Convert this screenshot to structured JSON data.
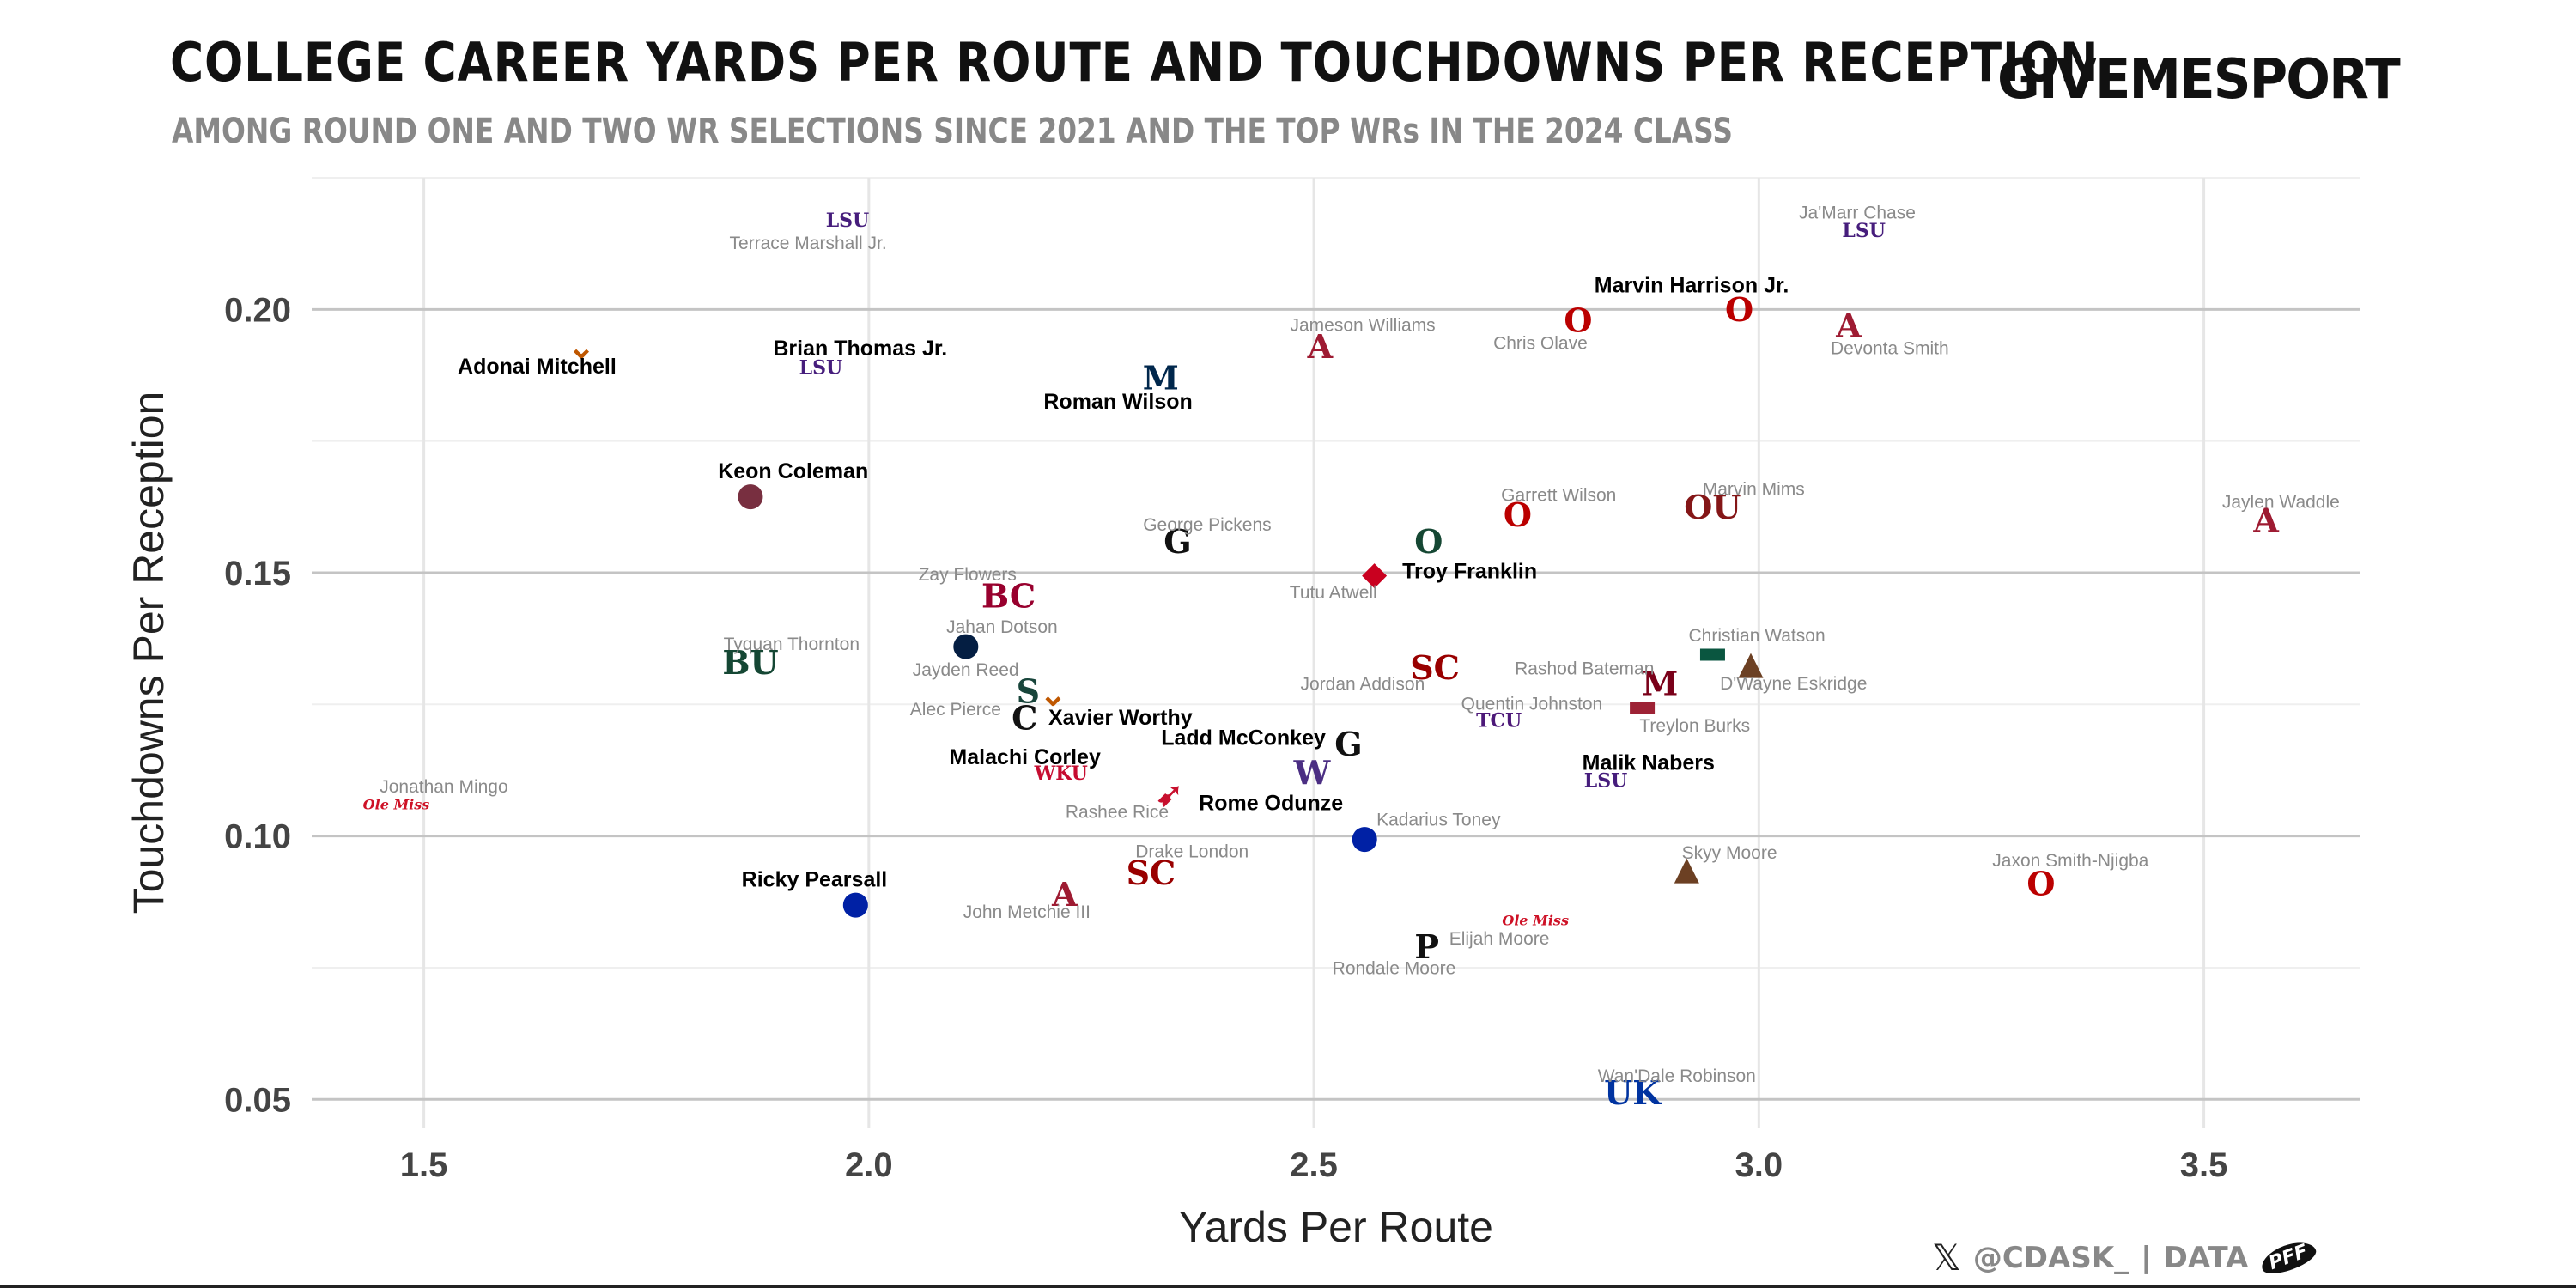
{
  "header": {
    "title": "COLLEGE CAREER YARDS PER ROUTE AND TOUCHDOWNS PER RECEPTION",
    "subtitle": "AMONG ROUND ONE AND TWO WR SELECTIONS SINCE 2021 AND THE TOP WRs IN THE 2024 CLASS",
    "brand": "GIVEMESPORT"
  },
  "footer": {
    "x_icon": "x-logo-icon",
    "handle": "@CDASK_",
    "separator": "|",
    "data_label": "DATA",
    "source_logo": "PFF"
  },
  "chart_data": {
    "type": "scatter",
    "title": "COLLEGE CAREER YARDS PER ROUTE AND TOUCHDOWNS PER RECEPTION",
    "xlabel": "Yards Per Route",
    "ylabel": "Touchdowns Per Reception",
    "xlim": [
      1.374,
      3.676
    ],
    "ylim": [
      0.0445,
      0.225
    ],
    "xticks": [
      1.5,
      2.0,
      2.5,
      3.0,
      3.5
    ],
    "xtick_labels": [
      "1.5",
      "2.0",
      "2.5",
      "3.0",
      "3.5"
    ],
    "yticks": [
      0.05,
      0.1,
      0.15,
      0.2
    ],
    "ytick_labels": [
      "0.05",
      "0.10",
      "0.15",
      "0.20"
    ],
    "grid": true,
    "marker": "school logo",
    "colors": {
      "class_2024_label": "#000000",
      "prior_label": "#8a8a8a"
    },
    "points": [
      {
        "name": "Terrace Marshall Jr.",
        "x": 1.976,
        "y": 0.217,
        "class_2024": false,
        "logo": "LSU",
        "color": "#461D7C"
      },
      {
        "name": "Ja'Marr Chase",
        "x": 3.118,
        "y": 0.215,
        "class_2024": false,
        "logo": "LSU",
        "color": "#461D7C"
      },
      {
        "name": "Adonai Mitchell",
        "x": 1.677,
        "y": 0.193,
        "class_2024": true,
        "logo": "⌄",
        "color": "#BF5700"
      },
      {
        "name": "Brian Thomas Jr.",
        "x": 1.946,
        "y": 0.189,
        "class_2024": true,
        "logo": "LSU",
        "color": "#461D7C"
      },
      {
        "name": "Roman Wilson",
        "x": 2.328,
        "y": 0.187,
        "class_2024": true,
        "logo": "M",
        "color": "#00274C"
      },
      {
        "name": "Jameson Williams",
        "x": 2.507,
        "y": 0.193,
        "class_2024": false,
        "logo": "A",
        "color": "#9E1B32"
      },
      {
        "name": "Marvin Harrison Jr.",
        "x": 2.978,
        "y": 0.2,
        "class_2024": true,
        "logo": "O",
        "color": "#BB0000"
      },
      {
        "name": "Chris Olave",
        "x": 2.797,
        "y": 0.198,
        "class_2024": false,
        "logo": "O",
        "color": "#BB0000"
      },
      {
        "name": "Devonta Smith",
        "x": 3.101,
        "y": 0.197,
        "class_2024": false,
        "logo": "A",
        "color": "#9E1B32"
      },
      {
        "name": "Keon Coleman",
        "x": 1.867,
        "y": 0.165,
        "class_2024": true,
        "logo": "●",
        "color": "#782F40"
      },
      {
        "name": "George Pickens",
        "x": 2.347,
        "y": 0.156,
        "class_2024": false,
        "logo": "G",
        "color": "#111111"
      },
      {
        "name": "Troy Franklin",
        "x": 2.629,
        "y": 0.156,
        "class_2024": true,
        "logo": "O",
        "color": "#154733"
      },
      {
        "name": "Tutu Atwell",
        "x": 2.568,
        "y": 0.15,
        "class_2024": false,
        "logo": "◆",
        "color": "#C9001F"
      },
      {
        "name": "Garrett Wilson",
        "x": 2.729,
        "y": 0.161,
        "class_2024": false,
        "logo": "O",
        "color": "#BB0000"
      },
      {
        "name": "Marvin Mims",
        "x": 2.948,
        "y": 0.1625,
        "class_2024": false,
        "logo": "OU",
        "color": "#841617"
      },
      {
        "name": "Jaylen Waddle",
        "x": 3.57,
        "y": 0.16,
        "class_2024": false,
        "logo": "A",
        "color": "#9E1B32"
      },
      {
        "name": "Zay Flowers",
        "x": 2.157,
        "y": 0.1456,
        "class_2024": false,
        "logo": "BC",
        "color": "#98002E"
      },
      {
        "name": "Jahan Dotson",
        "x": 2.109,
        "y": 0.1366,
        "class_2024": false,
        "logo": "●",
        "color": "#041E42"
      },
      {
        "name": "Tyquan Thornton",
        "x": 1.867,
        "y": 0.133,
        "class_2024": false,
        "logo": "BU",
        "color": "#154734"
      },
      {
        "name": "Jayden Reed",
        "x": 2.179,
        "y": 0.1275,
        "class_2024": false,
        "logo": "S",
        "color": "#18453B"
      },
      {
        "name": "Xavier Worthy",
        "x": 2.207,
        "y": 0.127,
        "class_2024": true,
        "logo": "⌄",
        "color": "#BF5700"
      },
      {
        "name": "Alec Pierce",
        "x": 2.175,
        "y": 0.1225,
        "class_2024": false,
        "logo": "C",
        "color": "#111111"
      },
      {
        "name": "Jordan Addison",
        "x": 2.636,
        "y": 0.132,
        "class_2024": false,
        "logo": "SC",
        "color": "#990000"
      },
      {
        "name": "Rashod Bateman",
        "x": 2.889,
        "y": 0.129,
        "class_2024": false,
        "logo": "M",
        "color": "#7A0019"
      },
      {
        "name": "Christian Watson",
        "x": 2.948,
        "y": 0.135,
        "class_2024": false,
        "logo": "▬",
        "color": "#0A5640"
      },
      {
        "name": "D'Wayne Eskridge",
        "x": 2.991,
        "y": 0.133,
        "class_2024": false,
        "logo": "▲",
        "color": "#6C4023"
      },
      {
        "name": "Quentin Johnston",
        "x": 2.708,
        "y": 0.122,
        "class_2024": false,
        "logo": "TCU",
        "color": "#4D1979"
      },
      {
        "name": "Treylon Burks",
        "x": 2.869,
        "y": 0.125,
        "class_2024": false,
        "logo": "▬",
        "color": "#9D2235"
      },
      {
        "name": "Malachi Corley",
        "x": 2.216,
        "y": 0.112,
        "class_2024": true,
        "logo": "WKU",
        "color": "#C60C30"
      },
      {
        "name": "Ladd McConkey",
        "x": 2.539,
        "y": 0.1175,
        "class_2024": true,
        "logo": "G",
        "color": "#111111"
      },
      {
        "name": "Rome Odunze",
        "x": 2.498,
        "y": 0.112,
        "class_2024": true,
        "logo": "W",
        "color": "#4B2E83"
      },
      {
        "name": "Rashee Rice",
        "x": 2.338,
        "y": 0.108,
        "class_2024": false,
        "logo": "➹",
        "color": "#C8102E"
      },
      {
        "name": "Malik Nabers",
        "x": 2.828,
        "y": 0.1106,
        "class_2024": true,
        "logo": "LSU",
        "color": "#461D7C"
      },
      {
        "name": "Jonathan Mingo",
        "x": 1.469,
        "y": 0.106,
        "class_2024": false,
        "logo": "Ole Miss",
        "color": "#CE1126"
      },
      {
        "name": "Kadarius Toney",
        "x": 2.557,
        "y": 0.1,
        "class_2024": false,
        "logo": "●",
        "color": "#0021A5"
      },
      {
        "name": "Drake London",
        "x": 2.317,
        "y": 0.093,
        "class_2024": false,
        "logo": "SC",
        "color": "#990000"
      },
      {
        "name": "John Metchie III",
        "x": 2.22,
        "y": 0.089,
        "class_2024": false,
        "logo": "A",
        "color": "#9E1B32"
      },
      {
        "name": "Ricky Pearsall",
        "x": 1.985,
        "y": 0.0875,
        "class_2024": true,
        "logo": "●",
        "color": "#0021A5"
      },
      {
        "name": "Skyy Moore",
        "x": 2.919,
        "y": 0.094,
        "class_2024": false,
        "logo": "▲",
        "color": "#6C4023"
      },
      {
        "name": "Jaxon Smith-Njigba",
        "x": 3.317,
        "y": 0.091,
        "class_2024": false,
        "logo": "O",
        "color": "#BB0000"
      },
      {
        "name": "Elijah Moore",
        "x": 2.749,
        "y": 0.084,
        "class_2024": false,
        "logo": "Ole Miss",
        "color": "#CE1126"
      },
      {
        "name": "Rondale Moore",
        "x": 2.627,
        "y": 0.079,
        "class_2024": false,
        "logo": "P",
        "color": "#111111"
      },
      {
        "name": "Wan'Dale Robinson",
        "x": 2.858,
        "y": 0.0513,
        "class_2024": false,
        "logo": "UK",
        "color": "#0033A0"
      }
    ]
  }
}
